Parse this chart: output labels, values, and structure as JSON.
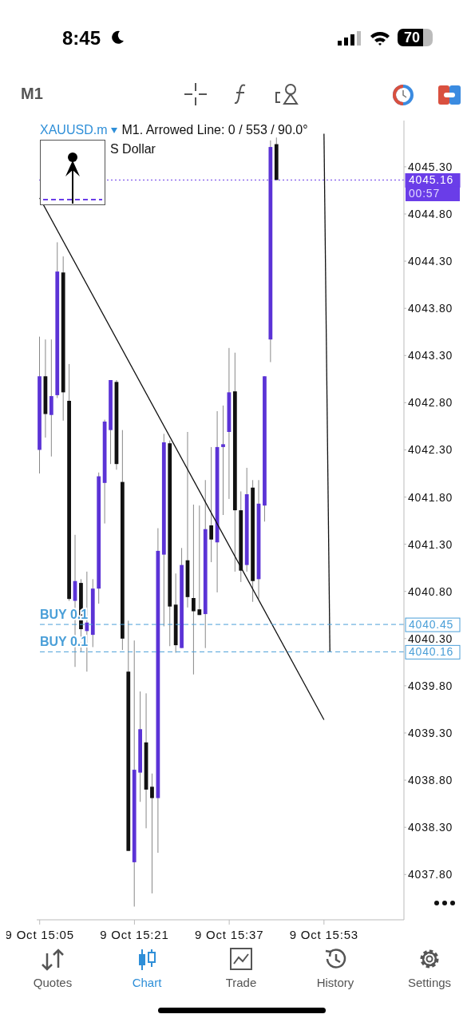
{
  "chart_data": {
    "type": "candlestick",
    "title": "XAUUSD.m",
    "subtitle": "M1. Arrowed Line: 0 / 553 / 90.0°",
    "categories": [
      "9 Oct 15:05",
      null,
      null,
      null,
      null,
      null,
      null,
      null,
      null,
      null,
      null,
      null,
      null,
      null,
      null,
      null,
      "9 Oct 15:21",
      null,
      null,
      null,
      null,
      null,
      null,
      null,
      null,
      null,
      null,
      null,
      null,
      null,
      null,
      null,
      "9 Oct 15:37",
      null,
      null,
      null,
      null,
      null,
      null,
      null,
      null,
      null,
      null,
      null,
      null,
      null,
      null,
      null,
      "9 Oct 15:53",
      null,
      null,
      null,
      null,
      null,
      null,
      null,
      null,
      null,
      null,
      null,
      null,
      null
    ],
    "ohlc": [
      [
        4042.3,
        4043.5,
        4042.05,
        4043.08
      ],
      [
        4043.08,
        4043.47,
        4042.43,
        4042.68
      ],
      [
        4042.67,
        4043.47,
        4042.23,
        4042.87
      ],
      [
        4042.88,
        4044.5,
        4042.85,
        4044.19
      ],
      [
        4044.18,
        4044.35,
        4042.61,
        4042.91
      ],
      [
        4042.82,
        4043.21,
        4040.7,
        4040.72
      ],
      [
        4040.7,
        4041.4,
        4040.0,
        4040.91
      ],
      [
        4040.89,
        4040.93,
        4040.16,
        4040.4
      ],
      [
        4040.38,
        4041.01,
        4039.95,
        4040.47
      ],
      [
        4040.34,
        4040.93,
        4040.21,
        4040.83
      ],
      [
        4040.83,
        4042.06,
        4040.67,
        4042.02
      ],
      [
        4041.95,
        4042.62,
        4041.52,
        4042.6
      ],
      [
        4042.51,
        4043.04,
        4042.15,
        4043.04
      ],
      [
        4043.02,
        4043.04,
        4042.09,
        4042.15
      ],
      [
        4041.96,
        4042.51,
        4040.18,
        4040.3
      ],
      [
        4039.95,
        4040.49,
        4038.05,
        4038.05
      ],
      [
        4037.93,
        4040.28,
        4037.46,
        4038.91
      ],
      [
        4038.88,
        4039.74,
        4038.57,
        4039.34
      ],
      [
        4039.2,
        4039.72,
        4038.29,
        4038.7
      ],
      [
        4038.73,
        4038.87,
        4037.6,
        4038.61
      ],
      [
        4038.61,
        4041.47,
        4038.03,
        4041.23
      ],
      [
        4041.19,
        4042.47,
        4040.43,
        4042.38
      ],
      [
        4042.37,
        4042.4,
        4040.22,
        4040.64
      ],
      [
        4040.66,
        4040.99,
        4040.15,
        4040.23
      ],
      [
        4040.2,
        4041.26,
        4040.2,
        4041.08
      ],
      [
        4041.13,
        4042.49,
        4040.63,
        4040.74
      ],
      [
        4040.73,
        4041.72,
        4039.92,
        4040.59
      ],
      [
        4040.61,
        4041.71,
        4040.55,
        4040.55
      ],
      [
        4040.56,
        4041.98,
        4040.2,
        4041.46
      ],
      [
        4041.5,
        4042.33,
        4041.11,
        4041.35
      ],
      [
        4041.32,
        4042.71,
        4040.79,
        4042.33
      ],
      [
        4042.33,
        4042.77,
        4041.61,
        4042.36
      ],
      [
        4042.49,
        4043.38,
        4041.78,
        4042.91
      ],
      [
        4042.92,
        4043.33,
        4041.01,
        4041.66
      ],
      [
        4041.66,
        4041.86,
        4040.9,
        4041.02
      ],
      [
        4041.08,
        4042.11,
        4041.01,
        4041.83
      ],
      [
        4041.9,
        4041.98,
        4040.69,
        4040.91
      ],
      [
        4040.93,
        4041.98,
        4040.72,
        4041.73
      ],
      [
        4041.71,
        4043.08,
        4041.54,
        4043.08
      ],
      [
        4043.47,
        4045.58,
        4043.23,
        4045.51
      ],
      [
        4045.54,
        4045.61,
        4045.16,
        4045.16
      ],
      null,
      null,
      null,
      null,
      null,
      null,
      null,
      null,
      null,
      null,
      null,
      null,
      null,
      null,
      null,
      null,
      null,
      null,
      null,
      null,
      null
    ],
    "colors": [
      "#5b33d6",
      "#111111",
      "#5b33d6",
      "#5b33d6",
      "#111111",
      "#111111",
      "#5b33d6",
      "#111111",
      "#5b33d6",
      "#5b33d6",
      "#5b33d6",
      "#5b33d6",
      "#5b33d6",
      "#111111",
      "#111111",
      "#111111",
      "#5b33d6",
      "#5b33d6",
      "#111111",
      "#111111",
      "#5b33d6",
      "#5b33d6",
      "#111111",
      "#111111",
      "#5b33d6",
      "#111111",
      "#111111",
      "#111111",
      "#5b33d6",
      "#111111",
      "#5b33d6",
      "#5b33d6",
      "#5b33d6",
      "#111111",
      "#111111",
      "#5b33d6",
      "#111111",
      "#5b33d6",
      "#5b33d6",
      "#5b33d6",
      "#111111",
      null,
      null,
      null,
      null,
      null,
      null,
      null,
      null,
      null,
      null,
      null,
      null,
      null,
      null,
      null,
      null,
      null,
      null,
      null,
      null,
      null
    ],
    "series": [
      {
        "type": "line",
        "color": "#111111",
        "values": [
          4044.97,
          null,
          null,
          null,
          null,
          null,
          null,
          null,
          null,
          null,
          null,
          null,
          null,
          null,
          null,
          null,
          null,
          null,
          null,
          null,
          null,
          null,
          null,
          null,
          null,
          null,
          null,
          null,
          null,
          null,
          null,
          null,
          null,
          null,
          null,
          null,
          null,
          null,
          null,
          null,
          null,
          null,
          null,
          null,
          null,
          null,
          null,
          null,
          4039.44,
          null,
          null,
          null,
          null,
          null,
          null,
          null,
          null,
          null,
          null,
          null,
          null,
          null
        ]
      },
      {
        "type": "line",
        "color": "#111111",
        "values": [
          null,
          null,
          null,
          null,
          null,
          null,
          null,
          null,
          null,
          null,
          null,
          null,
          null,
          null,
          null,
          null,
          null,
          null,
          null,
          null,
          null,
          null,
          null,
          null,
          null,
          null,
          null,
          null,
          null,
          null,
          null,
          null,
          null,
          null,
          null,
          null,
          null,
          null,
          null,
          null,
          null,
          null,
          null,
          null,
          null,
          null,
          null,
          null,
          4045.65,
          4040.16,
          null,
          null,
          null,
          null,
          null,
          null,
          null,
          null,
          null,
          null,
          null,
          null
        ]
      }
    ],
    "ylim": [
      4037.32,
      4045.79
    ],
    "yticks": [
      {
        "value": 4037.8,
        "label": "4037.80"
      },
      {
        "value": 4038.3,
        "label": "4038.30"
      },
      {
        "value": 4038.8,
        "label": "4038.80"
      },
      {
        "value": 4039.3,
        "label": "4039.30"
      },
      {
        "value": 4039.8,
        "label": "4039.80"
      },
      {
        "value": 4040.3,
        "label": "4040.30"
      },
      {
        "value": 4040.8,
        "label": "4040.80"
      },
      {
        "value": 4041.3,
        "label": "4041.30"
      },
      {
        "value": 4041.8,
        "label": "4041.80"
      },
      {
        "value": 4042.3,
        "label": "4042.30"
      },
      {
        "value": 4042.8,
        "label": "4042.80"
      },
      {
        "value": 4043.3,
        "label": "4043.30"
      },
      {
        "value": 4043.8,
        "label": "4043.80"
      },
      {
        "value": 4044.3,
        "label": "4044.30"
      },
      {
        "value": 4044.8,
        "label": "4044.80"
      },
      {
        "value": 4045.3,
        "label": "4045.30"
      }
    ],
    "ref_lines": [
      {
        "axis": "y",
        "value": 4045.16,
        "color": "#6a3de8",
        "line_style": "dotted"
      },
      {
        "axis": "y",
        "value": 4040.45,
        "label": "BUY 0.1",
        "color": "#4a9fd8",
        "line_style": "dashed"
      },
      {
        "axis": "y",
        "value": 4040.16,
        "label": "BUY 0.1",
        "color": "#4a9fd8",
        "line_style": "dashed"
      }
    ],
    "annotations": [
      "S Dollar",
      "00:57",
      "8:45",
      "70",
      "M1",
      "Quotes",
      "Chart",
      "Trade",
      "History",
      "Settings",
      "4045.16",
      "4040.45",
      "4040.16"
    ]
  }
}
